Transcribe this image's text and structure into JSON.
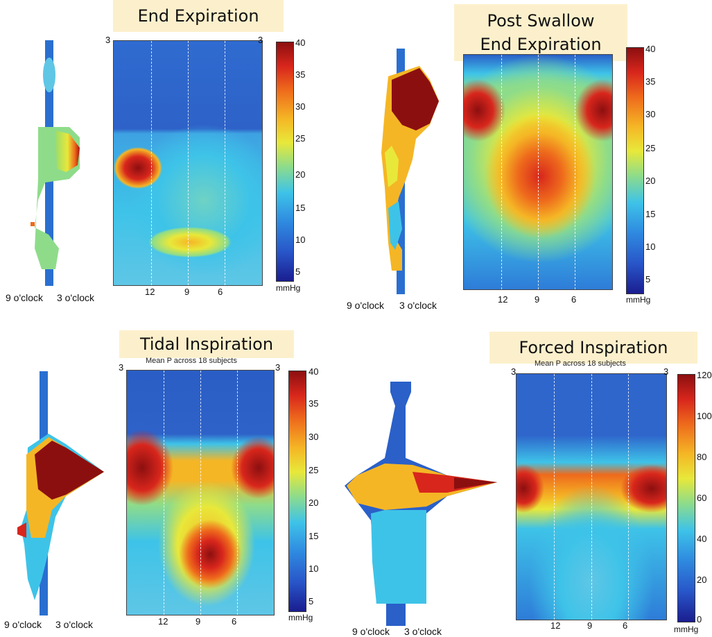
{
  "chart_data": [
    {
      "type": "heatmap",
      "title": "End Expiration",
      "x_tick_labels": [
        "12",
        "9",
        "6"
      ],
      "x_edge_labels": [
        "3",
        "3"
      ],
      "colorbar": {
        "ticks": [
          "40",
          "35",
          "30",
          "25",
          "20",
          "15",
          "10",
          "5"
        ],
        "unit": "mmHg",
        "range": [
          3,
          40
        ]
      },
      "side_labels": [
        "9 o'clock",
        "3 o'clock"
      ]
    },
    {
      "type": "heatmap",
      "title": [
        "Post Swallow",
        "End Expiration"
      ],
      "x_tick_labels": [
        "12",
        "9",
        "6"
      ],
      "colorbar": {
        "ticks": [
          "40",
          "35",
          "30",
          "25",
          "20",
          "15",
          "10",
          "5"
        ],
        "unit": "mmHg",
        "range": [
          3,
          40
        ]
      },
      "side_labels": [
        "9 o'clock",
        "3 o'clock"
      ]
    },
    {
      "type": "heatmap",
      "title": "Tidal Inspiration",
      "subtitle": "Mean P across 18 subjects",
      "x_tick_labels": [
        "12",
        "9",
        "6"
      ],
      "x_edge_labels": [
        "3",
        "3"
      ],
      "colorbar": {
        "ticks": [
          "40",
          "35",
          "30",
          "25",
          "20",
          "15",
          "10",
          "5"
        ],
        "unit": "mmHg",
        "range": [
          3,
          40
        ]
      },
      "side_labels": [
        "9 o'clock",
        "3 o'clock"
      ]
    },
    {
      "type": "heatmap",
      "title": "Forced Inspiration",
      "subtitle": "Mean P across 18 subjects",
      "x_tick_labels": [
        "12",
        "9",
        "6"
      ],
      "x_edge_labels": [
        "3",
        "3"
      ],
      "colorbar": {
        "ticks": [
          "120",
          "100",
          "80",
          "60",
          "40",
          "20",
          "0"
        ],
        "unit": "mmHg",
        "range": [
          0,
          120
        ]
      },
      "side_labels": [
        "9 o'clock",
        "3 o'clock"
      ]
    }
  ]
}
